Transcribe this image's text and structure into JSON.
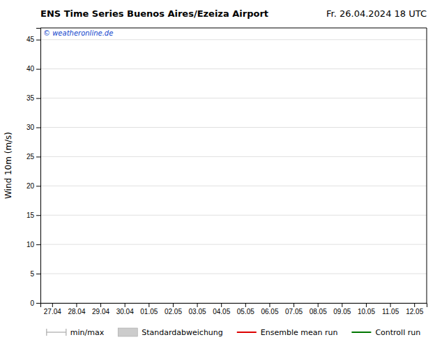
{
  "chart_data": {
    "type": "line",
    "title": "ENS Time Series Buenos Aires/Ezeiza Airport",
    "subtitle": "Fr. 26.04.2024 18 UTC",
    "ylabel": "Wind 10m (m/s)",
    "categories": [
      "27.04",
      "28.04",
      "29.04",
      "30.04",
      "01.05",
      "02.05",
      "03.05",
      "04.05",
      "05.05",
      "06.05",
      "07.05",
      "08.05",
      "09.05",
      "10.05",
      "11.05",
      "12.05"
    ],
    "series": [
      {
        "name": "min/max",
        "color": "#aaaaaa",
        "type": "range"
      },
      {
        "name": "Standardabweichung",
        "color": "#cccccc",
        "type": "area"
      },
      {
        "name": "Ensemble mean run",
        "color": "#dd0000",
        "type": "line"
      },
      {
        "name": "Controll run",
        "color": "#007700",
        "type": "line"
      }
    ],
    "annotations": [
      {
        "text": "© weatheronline.de",
        "color": "#1144cc"
      }
    ],
    "ylim": [
      0,
      47
    ],
    "yticks": [
      0,
      5,
      10,
      15,
      20,
      25,
      30,
      35,
      40,
      45
    ],
    "grid": true,
    "legend": "bottom"
  }
}
